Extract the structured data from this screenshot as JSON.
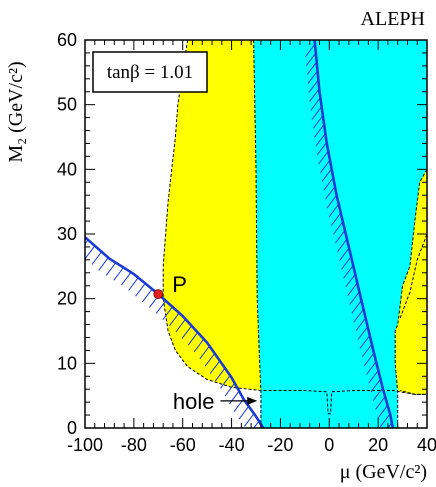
{
  "chart_data": {
    "type": "area",
    "experiment_label": "ALEPH",
    "xlabel": "μ (GeV/c²)",
    "ylabel": "M₂ (GeV/c²)",
    "xlim": [
      -100,
      40
    ],
    "ylim": [
      0,
      60
    ],
    "x_ticks": [
      -100,
      -80,
      -60,
      -40,
      -20,
      0,
      20,
      40
    ],
    "y_ticks": [
      0,
      10,
      20,
      30,
      40,
      50,
      60
    ],
    "tan_beta_label": "tanβ = 1.01",
    "colors": {
      "yellow_region": "#ffff00",
      "cyan_region": "#00ffff",
      "curve": "#1a3ad6",
      "point": "#e02020"
    },
    "regions": [
      {
        "fill": "yellow",
        "boundary": [
          [
            -58,
            60
          ],
          [
            -60,
            55
          ],
          [
            -62,
            50
          ],
          [
            -63,
            45
          ],
          [
            -64.5,
            40
          ],
          [
            -66,
            35
          ],
          [
            -67,
            30
          ],
          [
            -68,
            25
          ],
          [
            -68,
            20
          ],
          [
            -66,
            15
          ],
          [
            -63,
            12
          ],
          [
            -58,
            9.5
          ],
          [
            -50,
            7.5
          ],
          [
            -40,
            6.3
          ],
          [
            -28,
            5.8
          ],
          [
            -10,
            5.8
          ],
          [
            -1,
            5.6
          ],
          [
            -0.5,
            2.2
          ],
          [
            0.5,
            2.2
          ],
          [
            1,
            5.6
          ],
          [
            10,
            5.8
          ],
          [
            26,
            5.8
          ],
          [
            35,
            5.2
          ],
          [
            40,
            5.2
          ],
          [
            40,
            60
          ]
        ]
      },
      {
        "fill": "cyan",
        "boundary": [
          [
            -31,
            60
          ],
          [
            -30,
            40
          ],
          [
            -29.5,
            20
          ],
          [
            -28.5,
            10
          ],
          [
            -28,
            5.5
          ],
          [
            -28,
            0
          ],
          [
            28,
            0
          ],
          [
            28,
            5.5
          ],
          [
            27,
            10
          ],
          [
            27,
            15
          ],
          [
            28,
            16
          ],
          [
            30,
            22
          ],
          [
            33,
            25
          ],
          [
            35,
            32
          ],
          [
            37,
            38
          ],
          [
            40,
            40
          ],
          [
            40,
            60
          ]
        ]
      },
      {
        "fill": "yellow",
        "boundary": [
          [
            29,
            17
          ],
          [
            33,
            21
          ],
          [
            36,
            26
          ],
          [
            40,
            30
          ],
          [
            40,
            5.2
          ],
          [
            35,
            5.2
          ],
          [
            29,
            5.8
          ]
        ]
      }
    ],
    "series": [
      {
        "x": [
          -100,
          -90,
          -80,
          -70,
          -60,
          -50,
          -40,
          -35,
          -30,
          -27
        ],
        "y": [
          29.5,
          26.2,
          23.8,
          20.7,
          17.3,
          13.2,
          7.8,
          4.4,
          1.8,
          0
        ]
      },
      {
        "x": [
          -6,
          -4,
          -1,
          3,
          8,
          13,
          18,
          22,
          25,
          26
        ],
        "y": [
          60,
          52,
          44,
          36,
          28,
          20,
          12,
          6,
          2,
          0
        ]
      }
    ],
    "marked_point": {
      "label": "P",
      "x": -70,
      "y": 20.7
    },
    "annotations": [
      {
        "text": "hole",
        "x": -47,
        "y": 4.2,
        "arrow_to_x": -29.5,
        "arrow_to_y": 4.2
      }
    ]
  }
}
